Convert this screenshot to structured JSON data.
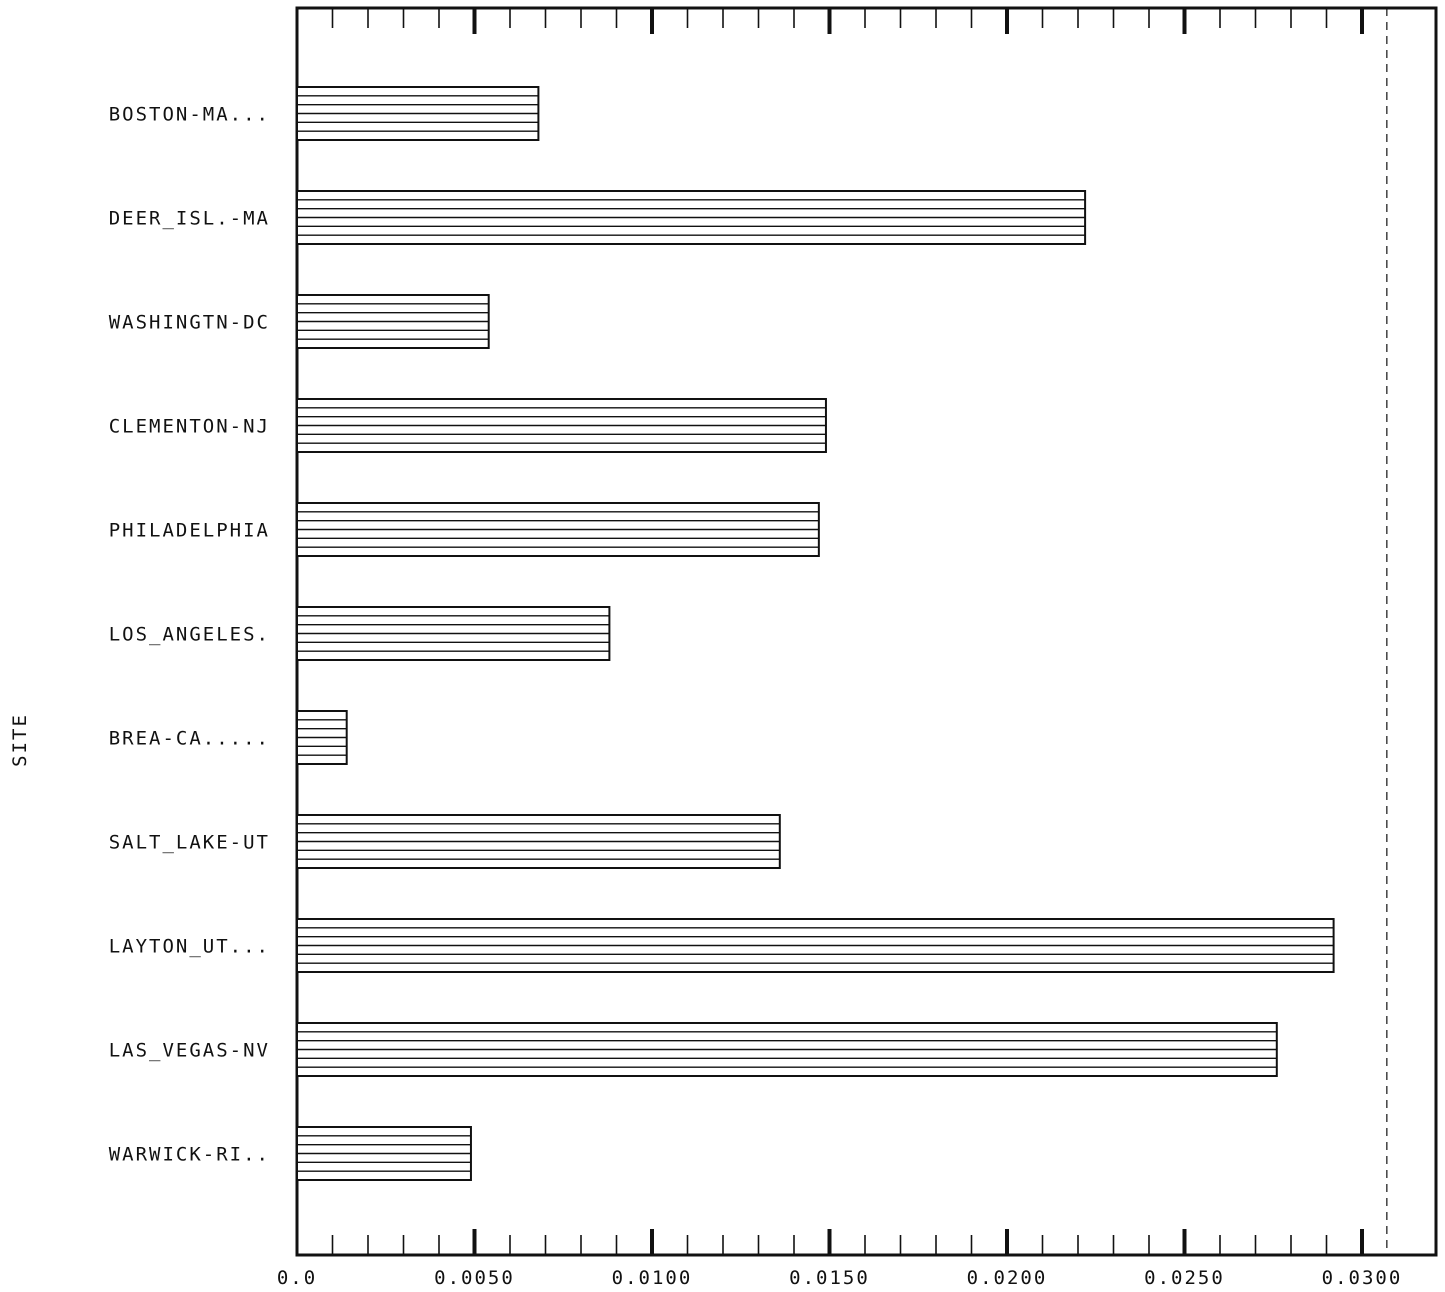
{
  "chart_data": {
    "type": "bar",
    "orientation": "horizontal",
    "ylabel": "SITE",
    "xlabel": "",
    "title": "",
    "xlim": [
      0,
      0.0305
    ],
    "x_tick_labels": [
      "0.0",
      "0.0050",
      "0.0100",
      "0.0150",
      "0.0200",
      "0.0250",
      "0.0300"
    ],
    "x_tick_values": [
      0,
      0.005,
      0.01,
      0.015,
      0.02,
      0.025,
      0.03
    ],
    "reference_line": 0.0307,
    "categories": [
      "BOSTON-MA...",
      "DEER_ISL.-MA",
      "WASHINGTN-DC",
      "CLEMENTON-NJ",
      "PHILADELPHIA",
      "LOS_ANGELES.",
      "BREA-CA.....",
      "SALT_LAKE-UT",
      "LAYTON_UT...",
      "LAS_VEGAS-NV",
      "WARWICK-RI.."
    ],
    "values": [
      0.0068,
      0.0222,
      0.0054,
      0.0149,
      0.0147,
      0.0088,
      0.0014,
      0.0136,
      0.0292,
      0.0276,
      0.0049
    ],
    "grid": false,
    "bar_fill": "horizontal-hatch",
    "colors": {
      "ink": "#111111",
      "background": "#ffffff"
    }
  }
}
